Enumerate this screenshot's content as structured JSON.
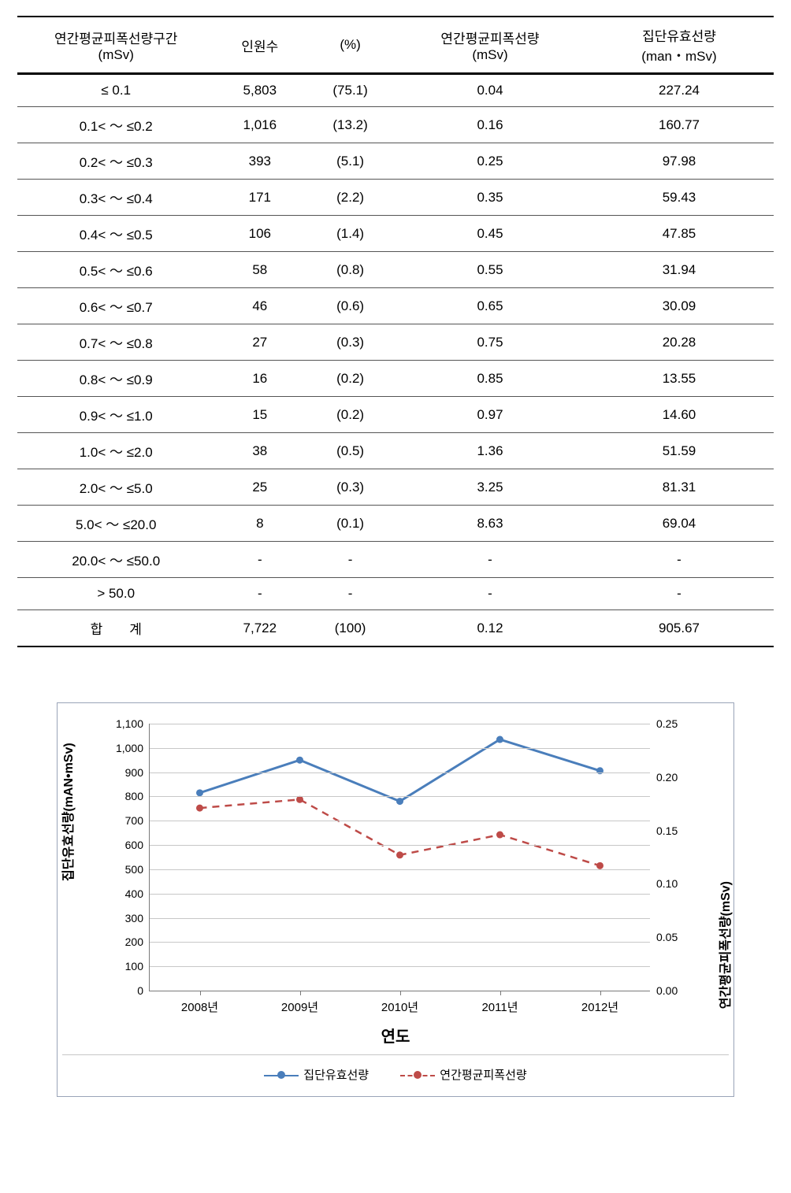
{
  "table": {
    "headers": {
      "range": {
        "l1": "연간평균피폭선량구간",
        "l2": "(mSv)"
      },
      "count": "인원수",
      "pct": "(%)",
      "avg": {
        "l1": "연간평균피폭선량",
        "l2": "(mSv)"
      },
      "coll": {
        "l1": "집단유효선량",
        "l2": "(man・mSv)"
      }
    },
    "rows": [
      {
        "range": "≤ 0.1",
        "count": "5,803",
        "pct": "(75.1)",
        "avg": "0.04",
        "coll": "227.24"
      },
      {
        "range": "0.1< ～ ≤0.2",
        "count": "1,016",
        "pct": "(13.2)",
        "avg": "0.16",
        "coll": "160.77"
      },
      {
        "range": "0.2< ～ ≤0.3",
        "count": "393",
        "pct": "(5.1)",
        "avg": "0.25",
        "coll": "97.98"
      },
      {
        "range": "0.3< ～ ≤0.4",
        "count": "171",
        "pct": "(2.2)",
        "avg": "0.35",
        "coll": "59.43"
      },
      {
        "range": "0.4< ～ ≤0.5",
        "count": "106",
        "pct": "(1.4)",
        "avg": "0.45",
        "coll": "47.85"
      },
      {
        "range": "0.5< ～ ≤0.6",
        "count": "58",
        "pct": "(0.8)",
        "avg": "0.55",
        "coll": "31.94"
      },
      {
        "range": "0.6< ～ ≤0.7",
        "count": "46",
        "pct": "(0.6)",
        "avg": "0.65",
        "coll": "30.09"
      },
      {
        "range": "0.7< ～ ≤0.8",
        "count": "27",
        "pct": "(0.3)",
        "avg": "0.75",
        "coll": "20.28"
      },
      {
        "range": "0.8< ～ ≤0.9",
        "count": "16",
        "pct": "(0.2)",
        "avg": "0.85",
        "coll": "13.55"
      },
      {
        "range": "0.9< ～ ≤1.0",
        "count": "15",
        "pct": "(0.2)",
        "avg": "0.97",
        "coll": "14.60"
      },
      {
        "range": "1.0< ～ ≤2.0",
        "count": "38",
        "pct": "(0.5)",
        "avg": "1.36",
        "coll": "51.59"
      },
      {
        "range": "2.0< ～ ≤5.0",
        "count": "25",
        "pct": "(0.3)",
        "avg": "3.25",
        "coll": "81.31"
      },
      {
        "range": "5.0< ～ ≤20.0",
        "count": "8",
        "pct": "(0.1)",
        "avg": "8.63",
        "coll": "69.04"
      },
      {
        "range": "20.0< ～ ≤50.0",
        "count": "-",
        "pct": "-",
        "avg": "-",
        "coll": "-"
      },
      {
        "range": "> 50.0",
        "count": "-",
        "pct": "-",
        "avg": "-",
        "coll": "-"
      }
    ],
    "total": {
      "range": "합　　계",
      "count": "7,722",
      "pct": "(100)",
      "avg": "0.12",
      "coll": "905.67"
    }
  },
  "chart": {
    "x_title": "연도",
    "y_left_label": "집단유효선량(mAN•mSv)",
    "y_right_label": "연간평균피폭선량(mSv)",
    "categories": [
      "2008년",
      "2009년",
      "2010년",
      "2011년",
      "2012년"
    ],
    "y_left": {
      "min": 0,
      "max": 1100,
      "step": 100,
      "ticks": [
        "0",
        "100",
        "200",
        "300",
        "400",
        "500",
        "600",
        "700",
        "800",
        "900",
        "1,000",
        "1,100"
      ]
    },
    "y_right": {
      "min": 0,
      "max": 0.25,
      "step": 0.05,
      "ticks": [
        "0.00",
        "0.05",
        "0.10",
        "0.15",
        "0.20",
        "0.25"
      ]
    },
    "series": [
      {
        "name": "집단유효선량",
        "axis": "left",
        "values": [
          815,
          950,
          780,
          1035,
          906
        ],
        "color": "#4a7ebb",
        "line_style": "solid",
        "line_width": 3,
        "marker": "circle",
        "marker_size": 9
      },
      {
        "name": "연간평균피폭선량",
        "axis": "right",
        "values": [
          0.171,
          0.179,
          0.127,
          0.146,
          0.117
        ],
        "color": "#be4b48",
        "line_style": "dash",
        "line_width": 2.5,
        "marker": "circle",
        "marker_size": 9
      }
    ],
    "legend": [
      {
        "label": "집단유효선량",
        "color": "#4a7ebb",
        "dash": false
      },
      {
        "label": "연간평균피폭선량",
        "color": "#be4b48",
        "dash": true
      }
    ],
    "background_color": "#ffffff",
    "grid_color": "#c7c7c7",
    "axis_color": "#7a7a7a",
    "font_family": "Malgun Gothic"
  }
}
